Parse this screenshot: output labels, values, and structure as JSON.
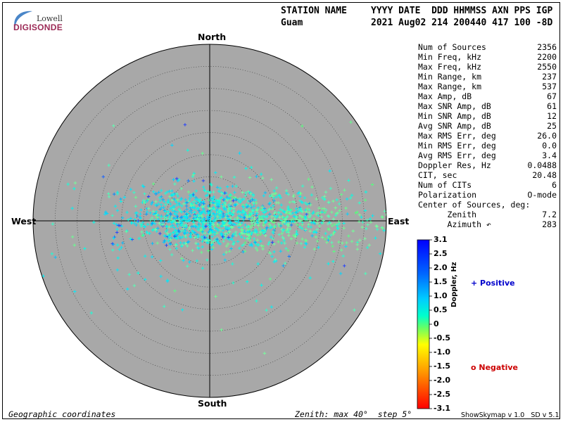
{
  "logo": {
    "top": "Lowell",
    "bottom": "DIGISONDE"
  },
  "header": {
    "line1_left": "STATION NAME",
    "line1_right": "YYYY DATE  DDD HHMMSS AXN PPS IGP",
    "station": "Guam",
    "values": "2021 Aug02 214 200440 417 100 -8D"
  },
  "compass": {
    "north": "North",
    "south": "South",
    "east": "East",
    "west": "West"
  },
  "stats": [
    {
      "label": "Num of Sources",
      "value": "2356"
    },
    {
      "label": "Min Freq, kHz",
      "value": "2200"
    },
    {
      "label": "Max Freq, kHz",
      "value": "2550"
    },
    {
      "label": "Min Range, km",
      "value": "237"
    },
    {
      "label": "Max Range, km",
      "value": "537"
    },
    {
      "label": "Max Amp, dB",
      "value": "67"
    },
    {
      "label": "Max SNR Amp, dB",
      "value": "61"
    },
    {
      "label": "Min SNR Amp, dB",
      "value": "12"
    },
    {
      "label": "Avg SNR Amp, dB",
      "value": "25"
    },
    {
      "label": "Max RMS Err, deg",
      "value": "26.0"
    },
    {
      "label": "Min RMS Err, deg",
      "value": "0.0"
    },
    {
      "label": "Avg RMS Err, deg",
      "value": "3.4"
    },
    {
      "label": "Doppler Res, Hz",
      "value": "0.0488"
    },
    {
      "label": "CIT, sec",
      "value": "20.48"
    },
    {
      "label": "Num of CITs",
      "value": "6"
    },
    {
      "label": "Polarization",
      "value": "O-mode"
    },
    {
      "label": "Center of Sources, deg:",
      "value": ""
    },
    {
      "label": "      Zenith",
      "value": "7.2"
    },
    {
      "label": "      Azimuth ↶",
      "value": "283"
    }
  ],
  "color_scale": {
    "title": "Doppler, Hz",
    "labels": [
      "3.1",
      "2.5",
      "2.0",
      "1.5",
      "1.0",
      "0.5",
      "0",
      "-0.5",
      "-1.0",
      "-1.5",
      "-2.0",
      "-2.5",
      "-3.1"
    ],
    "positive": "+ Positive",
    "negative": "o Negative"
  },
  "footer": {
    "left": "Geographic coordinates",
    "middle": "Zenith: max 40°  step 5°",
    "right": "ShowSkymap v 1.0   SD v 5.1"
  },
  "colors": {
    "plot_bg": "#a8a8a8",
    "positive_text": "#0000cc",
    "negative_text": "#cc0000"
  }
}
